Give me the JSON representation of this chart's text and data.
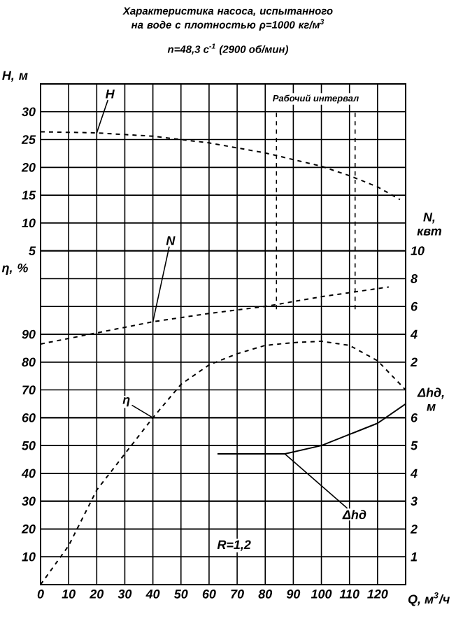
{
  "chart_data": [
    {
      "type": "line",
      "title": "Характеристика насоса, испытанного на воде с плотностью ρ=1000 кг/м$^{3}$",
      "subtitle": "n=48,3 с$^{-1}$ (2900 об/мин)",
      "xlabel": "Q, м$^{3}$/ч",
      "ylabel": "H, м",
      "y2label": "N, квт",
      "xlim": [
        0,
        130
      ],
      "xticks": [
        0,
        10,
        20,
        30,
        40,
        50,
        60,
        70,
        80,
        90,
        100,
        110,
        120
      ],
      "ylim": [
        -55,
        35
      ],
      "yticks": [
        5,
        10,
        15,
        20,
        25,
        30
      ],
      "y2lim": [
        -14,
        22
      ],
      "y2ticks": [
        2,
        4,
        6,
        8,
        10
      ],
      "grid": true,
      "series": [
        {
          "name": "H",
          "color": "#000000",
          "line_style": "dashed",
          "x": [
            0,
            20,
            40,
            60,
            80,
            100,
            110,
            120,
            128
          ],
          "values": [
            26.4,
            26.2,
            25.6,
            24.4,
            22.6,
            20.2,
            18.5,
            16.5,
            14.2
          ]
        },
        {
          "name": "N",
          "color": "#000000",
          "line_style": "dashed",
          "axis": "y2",
          "x": [
            0,
            20,
            40,
            60,
            80,
            100,
            124
          ],
          "values": [
            3.3,
            4.1,
            4.9,
            5.5,
            6.0,
            6.7,
            7.4
          ]
        }
      ],
      "ref_lines": [
        {
          "axis": "x",
          "value": 84,
          "label": "Рабочий интервал",
          "line_style": "dashed"
        },
        {
          "axis": "x",
          "value": 112,
          "line_style": "dashed"
        }
      ]
    },
    {
      "type": "line",
      "ylabel": "η, %",
      "y2label": "Δhд, м",
      "xlim": [
        0,
        130
      ],
      "tick_labels": "y",
      "ylim": [
        0,
        180
      ],
      "yticks": [
        10,
        20,
        30,
        40,
        50,
        60,
        70,
        80,
        90
      ],
      "y2lim": [
        0,
        18
      ],
      "y2ticks": [
        1,
        2,
        3,
        4,
        5,
        6
      ],
      "grid": true,
      "series": [
        {
          "name": "η",
          "color": "#000000",
          "line_style": "dashed",
          "x": [
            0,
            10,
            20,
            30,
            40,
            50,
            60,
            70,
            80,
            90,
            100,
            110,
            120,
            130
          ],
          "values": [
            0,
            14,
            34,
            47,
            60,
            72,
            79,
            83,
            86,
            87,
            87.5,
            86,
            80.5,
            70
          ]
        },
        {
          "name": "Δhд",
          "color": "#000000",
          "line_style": "solid",
          "axis": "y2",
          "x": [
            63,
            87,
            100,
            110,
            120,
            130
          ],
          "values": [
            4.7,
            4.7,
            5.0,
            5.4,
            5.8,
            6.5
          ]
        }
      ],
      "annotations": [
        "R=1,2"
      ]
    }
  ]
}
